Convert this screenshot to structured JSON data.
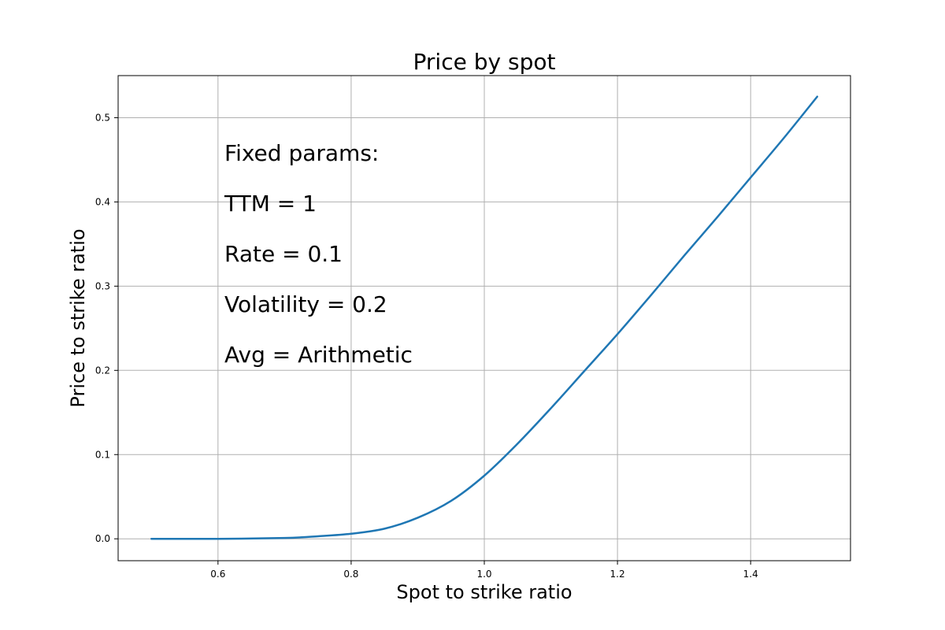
{
  "chart_data": {
    "type": "line",
    "title": "Price by spot",
    "xlabel": "Spot to strike ratio",
    "ylabel": "Price to strike ratio",
    "xlim": [
      0.45,
      1.55
    ],
    "ylim": [
      -0.026,
      0.55
    ],
    "x_ticks": [
      0.6,
      0.8,
      1.0,
      1.2,
      1.4
    ],
    "x_tick_labels": [
      "0.6",
      "0.8",
      "1.0",
      "1.2",
      "1.4"
    ],
    "y_ticks": [
      0.0,
      0.1,
      0.2,
      0.3,
      0.4,
      0.5
    ],
    "y_tick_labels": [
      "0.0",
      "0.1",
      "0.2",
      "0.3",
      "0.4",
      "0.5"
    ],
    "grid": true,
    "series": [
      {
        "color": "#1f77b4",
        "x": [
          0.5,
          0.6,
          0.7,
          0.75,
          0.8,
          0.85,
          0.9,
          0.95,
          1.0,
          1.05,
          1.1,
          1.15,
          1.2,
          1.25,
          1.3,
          1.35,
          1.4,
          1.45,
          1.5
        ],
        "values": [
          0.0,
          0.0,
          0.001,
          0.003,
          0.006,
          0.012,
          0.025,
          0.045,
          0.075,
          0.113,
          0.155,
          0.199,
          0.243,
          0.289,
          0.336,
          0.382,
          0.429,
          0.476,
          0.525
        ]
      }
    ]
  },
  "annotations": {
    "heading": "Fixed params:",
    "lines": [
      "TTM = 1",
      "Rate = 0.1",
      "Volatility = 0.2",
      "Avg = Arithmetic"
    ]
  }
}
